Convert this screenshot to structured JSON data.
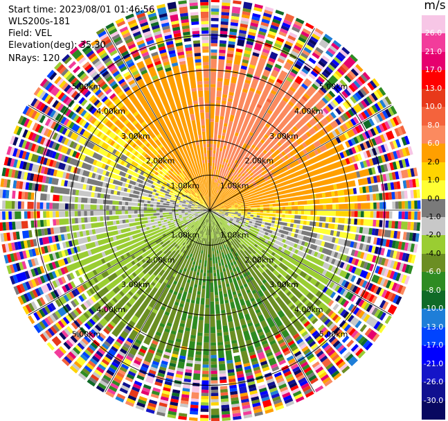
{
  "header": {
    "start_time": "Start time: 2023/08/01 01:46:56",
    "site": "WLS200s-181",
    "field": "Field: VEL",
    "elevation": "Elevation(deg): 35.30",
    "nrays": "NRays: 120"
  },
  "colorbar": {
    "unit": "m/s",
    "levels": [
      "26.0",
      "21.0",
      "17.0",
      "13.0",
      "10.0",
      "8.0",
      "6.0",
      "2.0",
      "1.0",
      "0.0",
      "-1.0",
      "-2.0",
      "-4.0",
      "-6.0",
      "-8.0",
      "-10.0",
      "-13.0",
      "-17.0",
      "-21.0",
      "-26.0",
      "-30.0"
    ],
    "colors": [
      "#f7c6e6",
      "#f23c9b",
      "#e6006e",
      "#ff0000",
      "#e8391a",
      "#f4633c",
      "#fb8a5f",
      "#ff9f00",
      "#ffd400",
      "#ffff33",
      "#7a7a7a",
      "#c8c8c8",
      "#9acd32",
      "#6b8e23",
      "#2e8b22",
      "#0f6a27",
      "#1e7ed8",
      "#0044ff",
      "#0000ff",
      "#1515c8",
      "#101090",
      "#080860"
    ]
  },
  "chart_data": {
    "type": "ppi",
    "field": "VEL",
    "units": "m/s",
    "nrays": 120,
    "elevation_deg": 35.3,
    "range_rings_km": [
      1.0,
      2.0,
      3.0,
      4.0,
      5.0
    ],
    "max_range_km": 6.0,
    "ring_labels": [
      "1.00km",
      "2.00km",
      "3.00km",
      "4.00km",
      "5.00km"
    ],
    "wind_pattern": {
      "receding_sector_deg": [
        300,
        110
      ],
      "approaching_sector_deg": [
        120,
        290
      ],
      "peak_receding_ms": 8.0,
      "peak_approaching_ms": -8.0
    },
    "noise_start_km": 4.4
  }
}
